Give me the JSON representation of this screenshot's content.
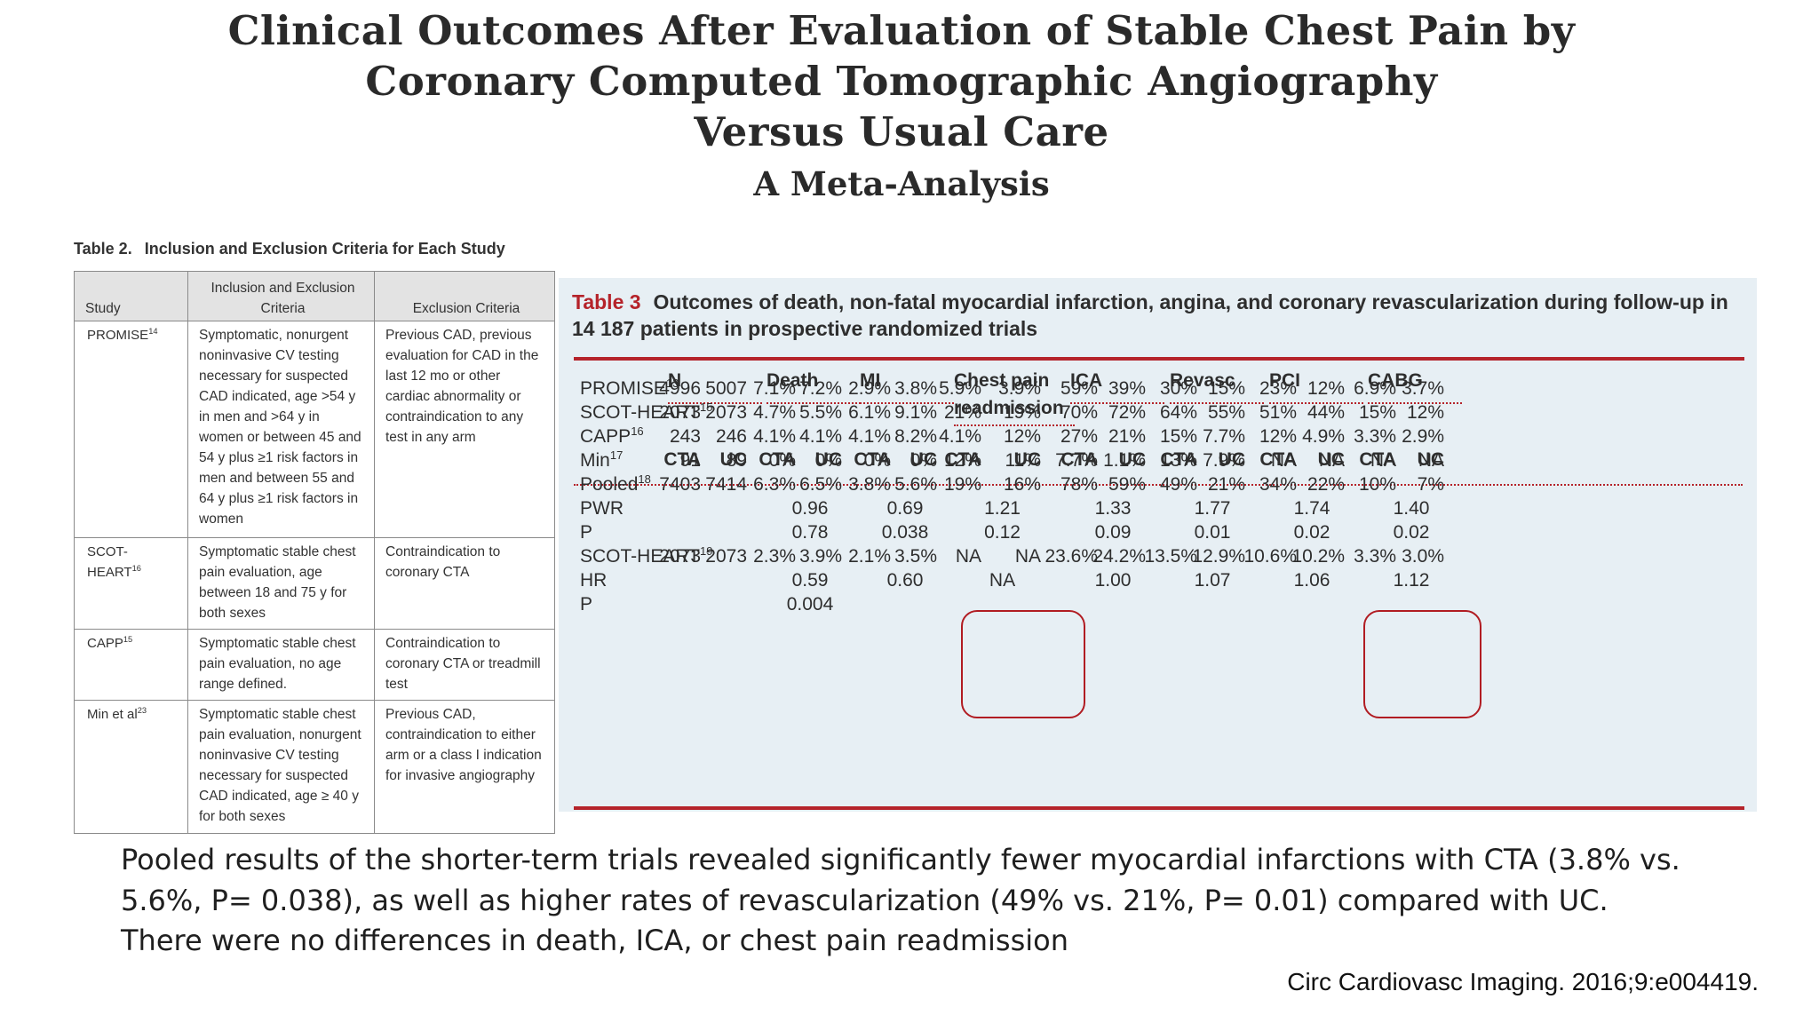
{
  "title": {
    "lines": [
      "Clinical Outcomes After Evaluation of Stable Chest Pain by",
      "Coronary Computed Tomographic Angiography",
      "Versus Usual Care"
    ],
    "subtitle": "A Meta-Analysis"
  },
  "table2": {
    "label": "Table 2.",
    "caption": "Inclusion and Exclusion Criteria for Each Study",
    "headers": {
      "study": "Study",
      "inclusion": "Inclusion and Exclusion Criteria",
      "exclusion": "Exclusion Criteria"
    },
    "rows": [
      {
        "study": "PROMISE",
        "ref": "14",
        "inclusion": "Symptomatic, nonurgent noninvasive CV testing necessary for suspected CAD indicated, age >54 y in men and >64 y in women or between 45 and 54 y plus ≥1 risk factors in men and between 55 and 64 y plus ≥1 risk factors in women",
        "exclusion": "Previous CAD, previous evaluation for CAD in the last 12 mo or other cardiac abnormality or contraindication to any test in any arm"
      },
      {
        "study": "SCOT-HEART",
        "ref": "16",
        "inclusion": "Symptomatic stable chest pain evaluation, age between 18 and 75 y for both sexes",
        "exclusion": "Contraindication to coronary CTA"
      },
      {
        "study": "CAPP",
        "ref": "15",
        "inclusion": "Symptomatic stable chest pain evaluation, no age range defined.",
        "exclusion": "Contraindication to coronary CTA or treadmill test"
      },
      {
        "study": "Min et al",
        "ref": "23",
        "inclusion": "Symptomatic stable chest pain evaluation, nonurgent noninvasive CV testing necessary for suspected CAD indicated, age ≥ 40 y for both sexes",
        "exclusion": "Previous CAD, contraindication to either arm or a class I indication for invasive angiography"
      }
    ]
  },
  "table3": {
    "label": "Table 3",
    "caption": "Outcomes of death, non-fatal myocardial infarction, angina, and coronary revascularization during follow-up in 14 187 patients in prospective randomized trials",
    "groups": [
      "N",
      "Death",
      "MI",
      "Chest pain readmission",
      "ICA",
      "Revasc",
      "PCI",
      "CABG"
    ],
    "subheaders": [
      "CTA",
      "UC"
    ],
    "rows": [
      {
        "label": "PROMISE",
        "ref": "13",
        "values": [
          "4996",
          "5007",
          "7.1%",
          "7.2%",
          "2.9%",
          "3.8%",
          "5.9%",
          "3.9%",
          "59%",
          "39%",
          "30%",
          "15%",
          "23%",
          "12%",
          "6.9%",
          "3.7%"
        ]
      },
      {
        "label": "SCOT-HEART",
        "ref": "15",
        "values": [
          "2073",
          "2073",
          "4.7%",
          "5.5%",
          "6.1%",
          "9.1%",
          "21%",
          "19%",
          "70%",
          "72%",
          "64%",
          "55%",
          "51%",
          "44%",
          "15%",
          "12%"
        ]
      },
      {
        "label": "CAPP",
        "ref": "16",
        "values": [
          "243",
          "246",
          "4.1%",
          "4.1%",
          "4.1%",
          "8.2%",
          "4.1%",
          "12%",
          "27%",
          "21%",
          "15%",
          "7.7%",
          "12%",
          "4.9%",
          "3.3%",
          "2.9%"
        ]
      },
      {
        "label": "Min",
        "ref": "17",
        "values": [
          "91",
          "89",
          "0%",
          "0%",
          "0%",
          "0%",
          "12%",
          "11%",
          "7.7%",
          "1.1%",
          "13%",
          "7.9%",
          "NA",
          "NA",
          "NA",
          "NA"
        ]
      },
      {
        "label": "Pooled",
        "ref": "18",
        "values": [
          "7403",
          "7414",
          "6.3%",
          "6.5%",
          "3.8%",
          "5.6%",
          "19%",
          "16%",
          "78%",
          "59%",
          "49%",
          "21%",
          "34%",
          "22%",
          "10%",
          "7%"
        ]
      },
      {
        "label": "PWR",
        "ref": "",
        "center": [
          "",
          "0.96",
          "0.69",
          "1.21",
          "1.33",
          "1.77",
          "1.74",
          "1.40"
        ]
      },
      {
        "label": "P",
        "ref": "",
        "center": [
          "",
          "0.78",
          "0.038",
          "0.12",
          "0.09",
          "0.01",
          "0.02",
          "0.02"
        ]
      },
      {
        "label": "SCOT-HEART",
        "ref": "19",
        "values": [
          "2073",
          "2073",
          "2.3%",
          "3.9%",
          "2.1%",
          "3.5%",
          "NA",
          "NA",
          "23.6%",
          "24.2%",
          "13.5%",
          "12.9%",
          "10.6%",
          "10.2%",
          "3.3%",
          "3.0%"
        ]
      },
      {
        "label": "HR",
        "ref": "",
        "center": [
          "",
          "0.59",
          "0.60",
          "NA",
          "1.00",
          "1.07",
          "1.06",
          "1.12"
        ]
      },
      {
        "label": "P",
        "ref": "",
        "center": [
          "",
          "0.004",
          "",
          "",
          "",
          "",
          "",
          ""
        ]
      }
    ]
  },
  "summary": {
    "line1": "Pooled results of the shorter-term trials revealed significantly fewer myocardial infarctions with CTA (3.8% vs.",
    "line2": "5.6%, P= 0.038), as well as higher rates of revascularization (49% vs. 21%, P= 0.01) compared with UC.",
    "line3": "There were no differences in death, ICA, or chest pain readmission"
  },
  "citation": "Circ Cardiovasc Imaging. 2016;9:e004419.",
  "colors": {
    "accent_red": "#b5232a",
    "highlight_box": "#b11c22",
    "table3_bg": "#e7eff4",
    "table2_header_bg": "#e3e3e3"
  }
}
